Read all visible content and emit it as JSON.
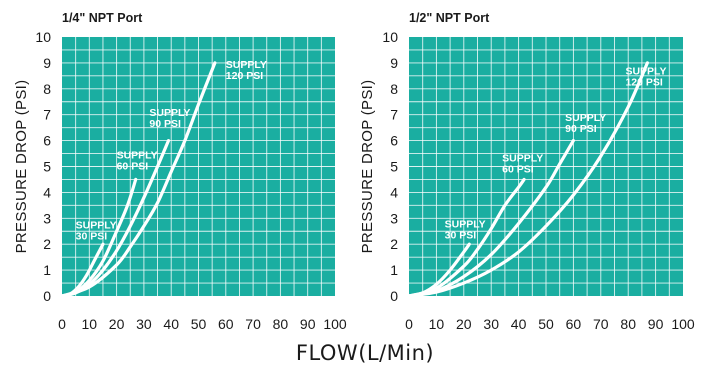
{
  "colors": {
    "plot_background": "#1aaea1",
    "curve": "#ffffff",
    "text": "#1a1a1a"
  },
  "shared_xlabel": "FLOW(L/Min)",
  "chart_data": [
    {
      "type": "line",
      "title": "1/4\" NPT Port",
      "xlabel": "FLOW(L/Min)",
      "ylabel": "PRESSURE DROP (PSI)",
      "xlim": [
        0,
        100
      ],
      "ylim": [
        0,
        10
      ],
      "x_ticks": [
        "0",
        "10",
        "20",
        "30",
        "40",
        "50",
        "60",
        "70",
        "80",
        "90",
        "100"
      ],
      "y_ticks": [
        "0",
        "1",
        "2",
        "3",
        "4",
        "5",
        "6",
        "7",
        "8",
        "9",
        "10"
      ],
      "grid": true,
      "series": [
        {
          "name": "SUPPLY 30 PSI",
          "label_lines": [
            "SUPPLY",
            "30 PSI"
          ],
          "label_at": [
            5,
            2.6
          ],
          "x": [
            0,
            3,
            6,
            9,
            12,
            15
          ],
          "y": [
            0,
            0.08,
            0.35,
            0.8,
            1.4,
            2.0
          ]
        },
        {
          "name": "SUPPLY 60 PSI",
          "label_lines": [
            "SUPPLY",
            "60 PSI"
          ],
          "label_at": [
            20,
            5.3
          ],
          "x": [
            0,
            5,
            10,
            15,
            20,
            24,
            27
          ],
          "y": [
            0,
            0.15,
            0.6,
            1.35,
            2.5,
            3.5,
            4.5
          ]
        },
        {
          "name": "SUPPLY 90 PSI",
          "label_lines": [
            "SUPPLY",
            "90 PSI"
          ],
          "label_at": [
            32,
            6.95
          ],
          "x": [
            0,
            5,
            10,
            15,
            20,
            25,
            30,
            35,
            39
          ],
          "y": [
            0,
            0.12,
            0.45,
            1.0,
            1.75,
            2.7,
            3.8,
            5.0,
            6.0
          ]
        },
        {
          "name": "SUPPLY 120 PSI",
          "label_lines": [
            "SUPPLY",
            "120 PSI"
          ],
          "label_at": [
            60,
            8.8
          ],
          "x": [
            0,
            10,
            20,
            25,
            30,
            35,
            40,
            45,
            50,
            56
          ],
          "y": [
            0,
            0.35,
            1.2,
            1.9,
            2.7,
            3.6,
            4.8,
            6.0,
            7.4,
            9.0
          ]
        }
      ]
    },
    {
      "type": "line",
      "title": "1/2\" NPT Port",
      "xlabel": "FLOW(L/Min)",
      "ylabel": "PRESSURE DROP (PSI)",
      "xlim": [
        0,
        100
      ],
      "ylim": [
        0,
        10
      ],
      "x_ticks": [
        "0",
        "10",
        "20",
        "30",
        "40",
        "50",
        "60",
        "70",
        "80",
        "90",
        "100"
      ],
      "y_ticks": [
        "0",
        "1",
        "2",
        "3",
        "4",
        "5",
        "6",
        "7",
        "8",
        "9",
        "10"
      ],
      "grid": true,
      "series": [
        {
          "name": "SUPPLY 30 PSI",
          "label_lines": [
            "SUPPLY",
            "30 PSI"
          ],
          "label_at": [
            13,
            2.65
          ],
          "x": [
            0,
            5,
            10,
            15,
            20,
            22
          ],
          "y": [
            0,
            0.12,
            0.45,
            1.0,
            1.7,
            2.0
          ]
        },
        {
          "name": "SUPPLY 60 PSI",
          "label_lines": [
            "SUPPLY",
            "60 PSI"
          ],
          "label_at": [
            34,
            5.2
          ],
          "x": [
            0,
            10,
            20,
            25,
            30,
            35,
            40,
            42
          ],
          "y": [
            0,
            0.3,
            1.15,
            1.8,
            2.6,
            3.5,
            4.2,
            4.5
          ]
        },
        {
          "name": "SUPPLY 90 PSI",
          "label_lines": [
            "SUPPLY",
            "90 PSI"
          ],
          "label_at": [
            57,
            6.75
          ],
          "x": [
            0,
            10,
            20,
            30,
            40,
            50,
            55,
            60
          ],
          "y": [
            0,
            0.2,
            0.75,
            1.6,
            2.8,
            4.2,
            5.1,
            6.0
          ]
        },
        {
          "name": "SUPPLY 120 PSI",
          "label_lines": [
            "SUPPLY",
            "120 PSI"
          ],
          "label_at": [
            79,
            8.55
          ],
          "x": [
            0,
            10,
            20,
            30,
            40,
            50,
            60,
            70,
            80,
            87
          ],
          "y": [
            0,
            0.15,
            0.5,
            1.0,
            1.7,
            2.7,
            3.9,
            5.4,
            7.3,
            9.0
          ]
        }
      ]
    }
  ]
}
